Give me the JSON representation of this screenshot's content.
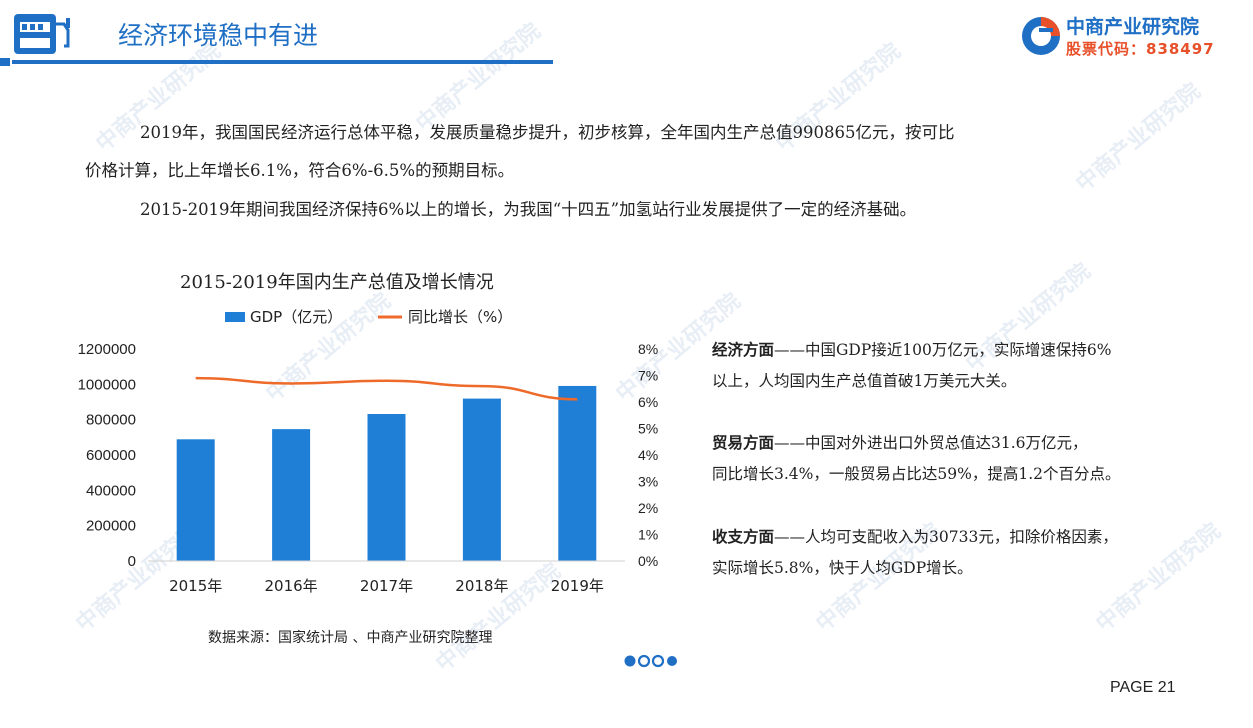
{
  "header": {
    "title": "经济环境稳中有进",
    "brand_name": "中商产业研究院",
    "brand_code": "股票代码：838497"
  },
  "body": {
    "para1_line1": "2019年，我国国民经济运行总体平稳，发展质量稳步提升，初步核算，全年国内生产总值990865亿元，按可比",
    "para1_line2": "价格计算，比上年增长6.1%，符合6%-6.5%的预期目标。",
    "para2": "2015-2019年期间我国经济保持6%以上的增长，为我国“十四五”加氢站行业发展提供了一定的经济基础。"
  },
  "chart_data": {
    "type": "bar",
    "title": "2015-2019年国内生产总值及增长情况",
    "categories": [
      "2015年",
      "2016年",
      "2017年",
      "2018年",
      "2019年"
    ],
    "series": [
      {
        "name": "GDP（亿元）",
        "type": "bar",
        "axis": "left",
        "color": "#1f7fd6",
        "values": [
          688858,
          746395,
          832036,
          919281,
          990865
        ]
      },
      {
        "name": "同比增长（%）",
        "type": "line",
        "axis": "right",
        "color": "#ee6a2a",
        "values": [
          6.9,
          6.7,
          6.8,
          6.6,
          6.1
        ]
      }
    ],
    "y_left_ticks": [
      "0",
      "200000",
      "400000",
      "600000",
      "800000",
      "1000000",
      "1200000"
    ],
    "y_right_ticks": [
      "0%",
      "1%",
      "2%",
      "3%",
      "4%",
      "5%",
      "6%",
      "7%",
      "8%"
    ],
    "ylim_left": [
      0,
      1200000
    ],
    "ylim_right": [
      0,
      8
    ],
    "legend": "top",
    "grid": false
  },
  "source": "数据来源：国家统计局 、中商产业研究院整理",
  "notes": [
    {
      "head": "经济方面",
      "line1": "——中国GDP接近100万亿元，实际增速保持6%",
      "line2": "以上，人均国内生产总值首破1万美元大关。"
    },
    {
      "head": "贸易方面",
      "line1": "——中国对外进出口外贸总值达31.6万亿元，",
      "line2": "同比增长3.4%，一般贸易占比达59%，提高1.2个百分点。"
    },
    {
      "head": "收支方面",
      "line1": "——人均可支配收入为30733元，扣除价格因素，",
      "line2": "实际增长5.8%，快于人均GDP增长。"
    }
  ],
  "watermark": "中商产业研究院",
  "page": "PAGE 21",
  "colors": {
    "accent": "#1f6fc5",
    "brand_red": "#e8502a",
    "bar": "#1f7fd6",
    "line": "#ee6a2a"
  }
}
